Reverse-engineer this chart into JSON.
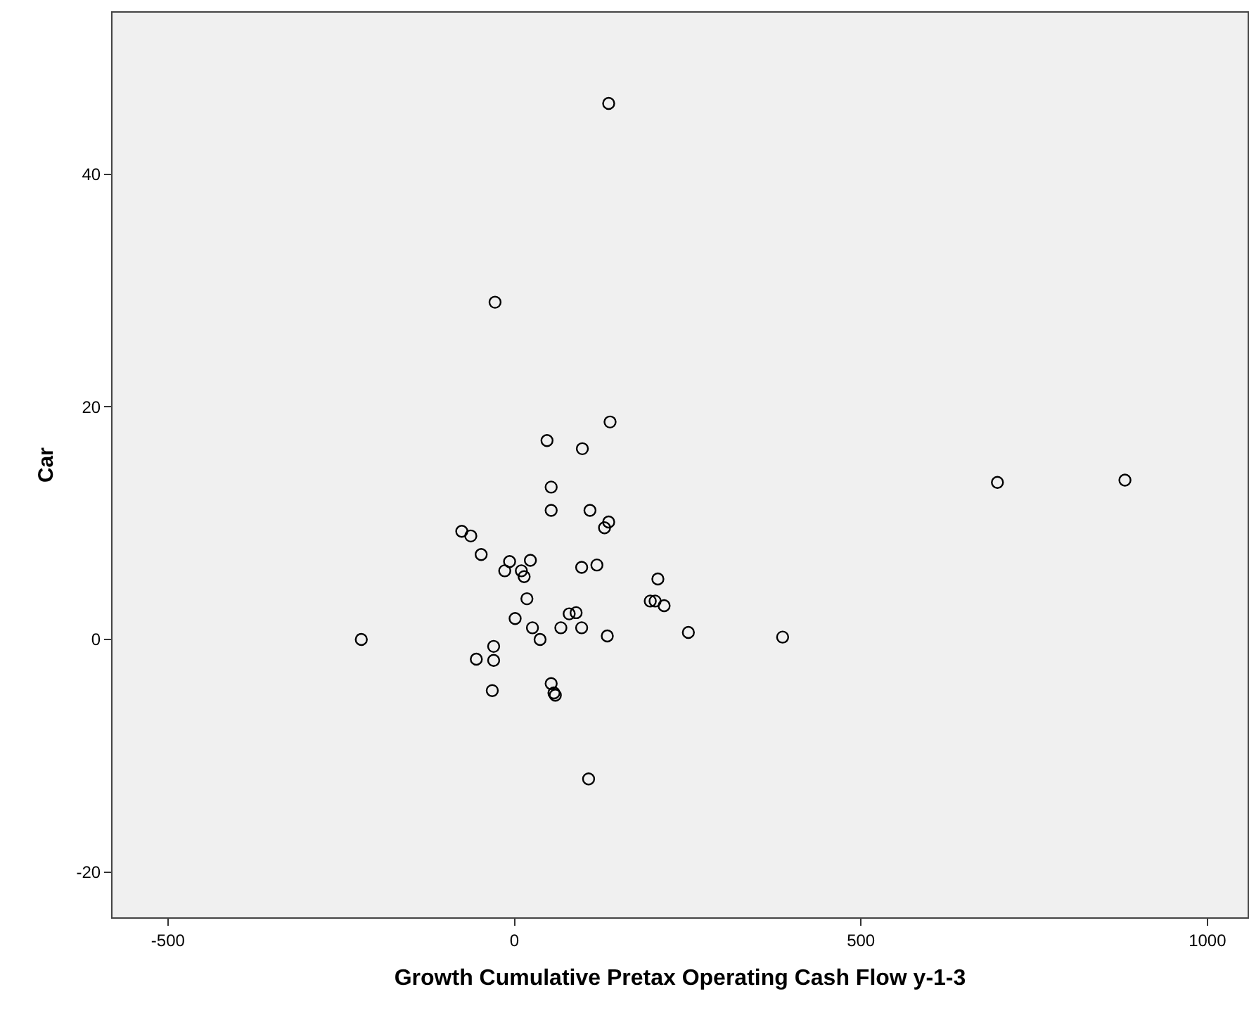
{
  "chart_data": {
    "type": "scatter",
    "xlabel": "Growth Cumulative Pretax Operating Cash Flow y-1-3",
    "ylabel": "Car",
    "marker": "circle",
    "grid": false,
    "xlim": [
      -580,
      1058
    ],
    "xticks": [
      -500,
      0,
      500,
      1000
    ],
    "ylim": [
      -23.9,
      53.9
    ],
    "yticks": [
      -20,
      0,
      20,
      40
    ],
    "series": [
      {
        "color": "#000000",
        "x": [
          136,
          -28,
          -221,
          697,
          881,
          387,
          107,
          138,
          47,
          98,
          53,
          53,
          109,
          136,
          130,
          -76,
          -63,
          -48,
          -7,
          23,
          -14,
          10,
          14,
          97,
          119,
          207,
          18,
          196,
          203,
          216,
          79,
          89,
          1,
          26,
          67,
          97,
          37,
          134,
          251,
          -30,
          -55,
          -30,
          -32,
          53,
          57,
          59
        ],
        "values": [
          46.1,
          29.0,
          0,
          13.5,
          13.7,
          0.2,
          -12.0,
          18.7,
          17.1,
          16.4,
          13.1,
          11.1,
          11.1,
          10.1,
          9.6,
          9.3,
          8.9,
          7.3,
          6.7,
          6.8,
          5.9,
          5.9,
          5.4,
          6.2,
          6.4,
          5.2,
          3.5,
          3.3,
          3.3,
          2.9,
          2.2,
          2.3,
          1.8,
          1.0,
          1.0,
          1.0,
          0.0,
          0.3,
          0.6,
          -0.6,
          -1.7,
          -1.8,
          -4.4,
          -3.8,
          -4.6,
          -4.8
        ]
      }
    ]
  }
}
